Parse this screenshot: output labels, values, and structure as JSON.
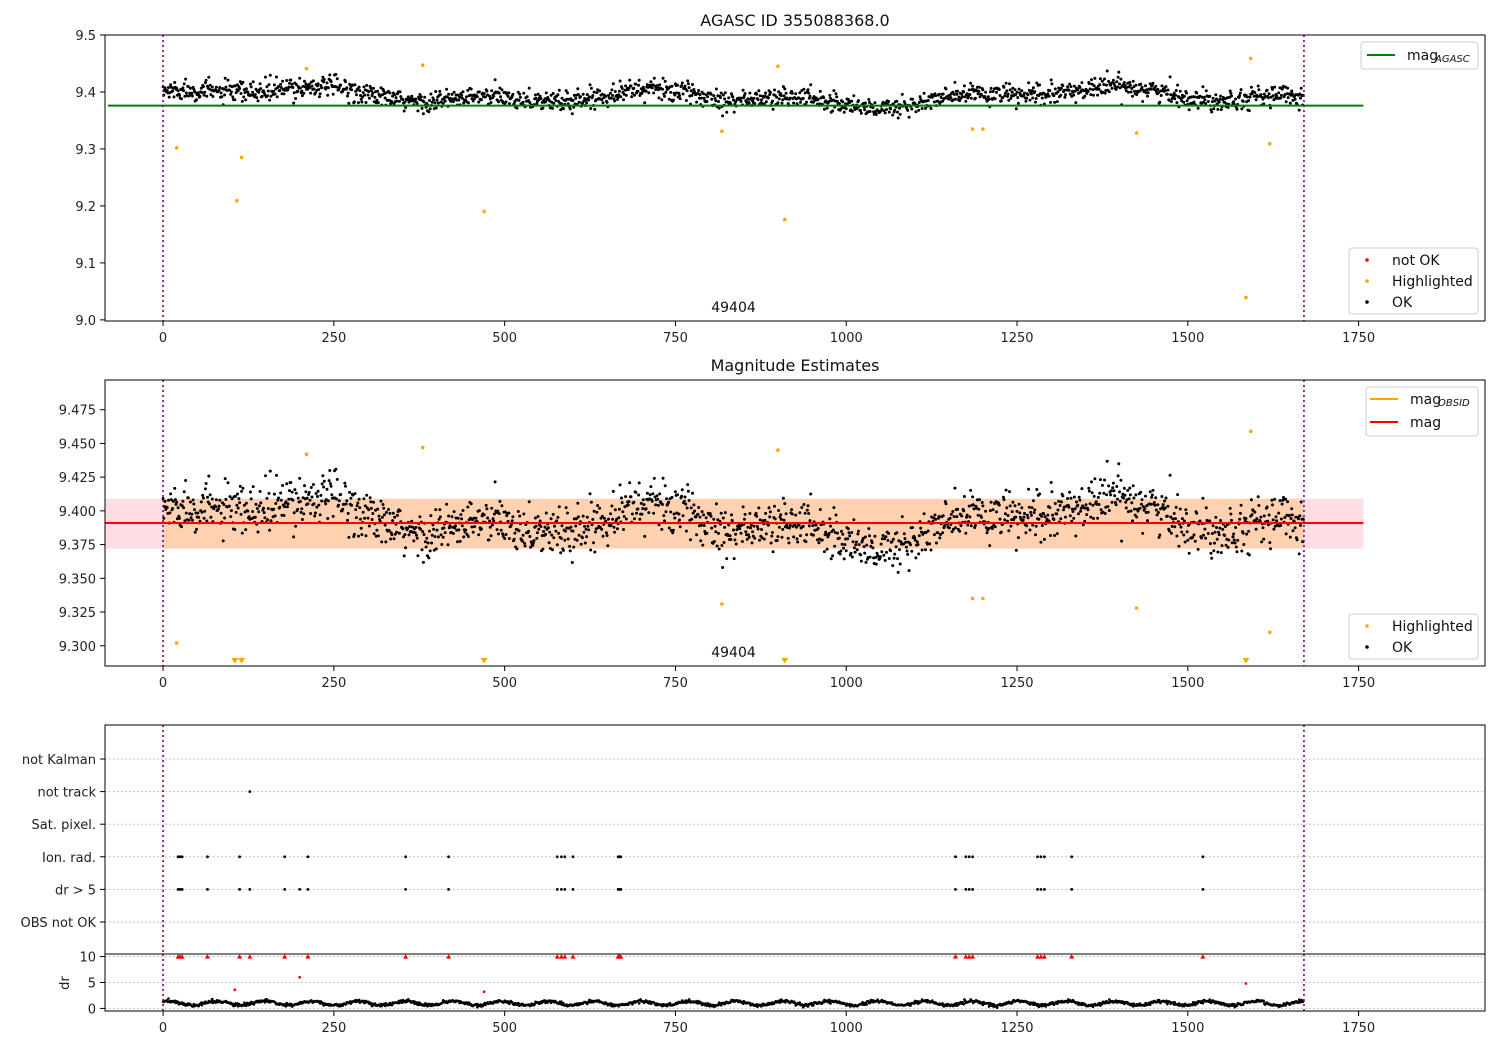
{
  "chart_data": [
    {
      "id": "agasc_mag",
      "type": "scatter",
      "title": "AGASC ID 355088368.0",
      "xlim": [
        -85,
        1935
      ],
      "ylim": [
        8.998,
        9.5
      ],
      "x_ticks": [
        0,
        250,
        500,
        750,
        1000,
        1250,
        1500,
        1750
      ],
      "y_ticks": [
        9.0,
        9.1,
        9.2,
        9.3,
        9.4,
        9.5
      ],
      "y_tick_labels": [
        "9.0",
        "9.1",
        "9.2",
        "9.3",
        "9.4",
        "9.5"
      ],
      "obsid_bounds": [
        0,
        1670
      ],
      "annotation": {
        "text": "49404",
        "x": 835
      },
      "mag_agasc": {
        "value": 9.376,
        "x_range": [
          0,
          1757
        ],
        "color": "#008000"
      },
      "ok_cloud": {
        "n": 1670,
        "center": 9.392,
        "spread": 0.026,
        "color": "#000000"
      },
      "highlighted": {
        "color": "#ffa500",
        "x": [
          20,
          108,
          115,
          210,
          380,
          470,
          818,
          900,
          910,
          1185,
          1200,
          1425,
          1585,
          1592,
          1620
        ],
        "y": [
          9.302,
          9.209,
          9.285,
          9.441,
          9.447,
          9.19,
          9.331,
          9.445,
          9.176,
          9.335,
          9.335,
          9.328,
          9.039,
          9.459,
          9.309
        ]
      },
      "legend_top": {
        "position": "top-right",
        "entries": [
          {
            "label": "mag",
            "sub": "AGASC",
            "color": "#008000",
            "kind": "line"
          }
        ]
      },
      "legend_bottom": {
        "position": "bottom-right",
        "entries": [
          {
            "label": "not OK",
            "color": "#ff0000",
            "kind": "marker"
          },
          {
            "label": "Highlighted",
            "color": "#ffa500",
            "kind": "marker"
          },
          {
            "label": "OK",
            "color": "#000000",
            "kind": "marker"
          }
        ]
      }
    },
    {
      "id": "mag_estimates",
      "type": "scatter",
      "title": "Magnitude Estimates",
      "xlim": [
        -85,
        1935
      ],
      "ylim": [
        9.285,
        9.497
      ],
      "x_ticks": [
        0,
        250,
        500,
        750,
        1000,
        1250,
        1500,
        1750
      ],
      "y_ticks": [
        9.3,
        9.325,
        9.35,
        9.375,
        9.4,
        9.425,
        9.45,
        9.475
      ],
      "y_tick_labels": [
        "9.300",
        "9.325",
        "9.350",
        "9.375",
        "9.400",
        "9.425",
        "9.450",
        "9.475"
      ],
      "obsid_bounds": [
        0,
        1670
      ],
      "annotation": {
        "text": "49404",
        "x": 835
      },
      "mag": {
        "value": 9.391,
        "x_range": [
          -85,
          1757
        ],
        "color": "#ff0000"
      },
      "mag_band": {
        "low": 9.372,
        "high": 9.409,
        "x_range": [
          -85,
          1757
        ],
        "color": "#ffb6c1"
      },
      "mag_obsid": {
        "value": 9.391,
        "low": 9.372,
        "high": 9.409,
        "x_range": [
          0,
          1670
        ],
        "color": "#ffa500"
      },
      "ok_cloud": {
        "n": 1670,
        "center": 9.392,
        "spread": 0.026,
        "color": "#000000"
      },
      "highlighted": {
        "color": "#ffa500",
        "x": [
          20,
          210,
          380,
          818,
          900,
          1185,
          1200,
          1425,
          1592,
          1620
        ],
        "y": [
          9.302,
          9.442,
          9.447,
          9.331,
          9.445,
          9.335,
          9.335,
          9.328,
          9.459,
          9.31
        ]
      },
      "offscale_low_x": [
        105,
        115,
        470,
        910,
        1585
      ],
      "legend_top": {
        "position": "top-right",
        "entries": [
          {
            "label": "mag",
            "sub": "OBSID",
            "color": "#ffa500",
            "kind": "line"
          },
          {
            "label": "mag",
            "sub": "",
            "color": "#ff0000",
            "kind": "line"
          }
        ]
      },
      "legend_bottom": {
        "position": "bottom-right",
        "entries": [
          {
            "label": "Highlighted",
            "color": "#ffa500",
            "kind": "marker"
          },
          {
            "label": "OK",
            "color": "#000000",
            "kind": "marker"
          }
        ]
      }
    },
    {
      "id": "flags",
      "type": "scatter",
      "title": "",
      "xlim": [
        -85,
        1935
      ],
      "rows": [
        "not Kalman",
        "not track",
        "Sat. pixel.",
        "Ion. rad.",
        "dr > 5",
        "OBS not OK"
      ],
      "obsid_bounds": [
        0,
        1670
      ],
      "points": {
        "not track": [
          127
        ],
        "Ion. rad.": [
          22,
          25,
          28,
          65,
          112,
          178,
          212,
          355,
          418,
          577,
          583,
          588,
          600,
          666,
          668,
          670,
          1160,
          1175,
          1180,
          1185,
          1280,
          1285,
          1290,
          1330,
          1522
        ],
        "dr > 5": [
          22,
          25,
          28,
          65,
          112,
          127,
          178,
          200,
          212,
          355,
          418,
          577,
          583,
          588,
          600,
          666,
          668,
          670,
          1160,
          1175,
          1180,
          1185,
          1280,
          1285,
          1290,
          1330,
          1522
        ]
      }
    },
    {
      "id": "dr",
      "type": "scatter",
      "title": "",
      "ylabel": "dr",
      "xlim": [
        -85,
        1935
      ],
      "ylim": [
        -0.5,
        10.5
      ],
      "x_ticks": [
        0,
        250,
        500,
        750,
        1000,
        1250,
        1500,
        1750
      ],
      "y_ticks": [
        0,
        5,
        10
      ],
      "y_tick_labels": [
        "0",
        "5",
        "10"
      ],
      "obsid_bounds": [
        0,
        1670
      ],
      "baseline": {
        "mean": 1.0,
        "amplitude": 0.5,
        "n": 1670,
        "color": "#000000"
      },
      "capped_at_10": {
        "color": "#ff0000",
        "x": [
          22,
          25,
          28,
          65,
          112,
          127,
          178,
          212,
          355,
          418,
          577,
          583,
          588,
          600,
          666,
          668,
          670,
          1160,
          1175,
          1180,
          1185,
          1280,
          1285,
          1290,
          1330,
          1522
        ]
      },
      "outliers": {
        "color": "#ff0000",
        "x": [
          105,
          200,
          470,
          1585
        ],
        "y": [
          3.6,
          6.0,
          3.2,
          4.8
        ]
      }
    }
  ]
}
